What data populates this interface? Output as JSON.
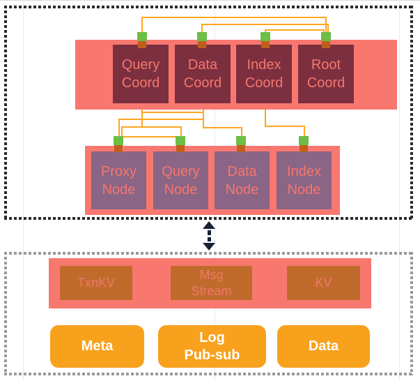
{
  "diagram": {
    "upper_group": {
      "coordinators": [
        {
          "label": "Query\nCoord"
        },
        {
          "label": "Data\nCoord"
        },
        {
          "label": "Index\nCoord"
        },
        {
          "label": "Root\nCoord"
        }
      ],
      "workers": [
        {
          "label": "Proxy\nNode"
        },
        {
          "label": "Query\nNode"
        },
        {
          "label": "Data\nNode"
        },
        {
          "label": "Index\nNode"
        }
      ]
    },
    "lower_group": {
      "services": [
        {
          "label": "TxnKV"
        },
        {
          "label": "Msg\nStream"
        },
        {
          "label": "KV"
        }
      ],
      "stores": [
        {
          "label": "Meta"
        },
        {
          "label": "Log\nPub-sub"
        },
        {
          "label": "Data"
        }
      ]
    },
    "icons": {
      "connector_port": "green-port-icon",
      "between_groups": "bidirectional-arrow-icon"
    },
    "colors": {
      "band_pink": "#f8786f",
      "coordinator_maroon": "#7c2f3f",
      "worker_purple": "#8b6586",
      "label_salmon": "#f5776d",
      "port_green": "#6cbe45",
      "stem_brown": "#c05f1d",
      "wire_orange": "#ffa51e",
      "service_brown": "#c06b2b",
      "store_orange": "#f8a11d",
      "store_text": "#ffffff",
      "upper_border": "#2a2a2a",
      "lower_border": "#9a9a9a",
      "arrow_dark": "#1b2136"
    }
  }
}
